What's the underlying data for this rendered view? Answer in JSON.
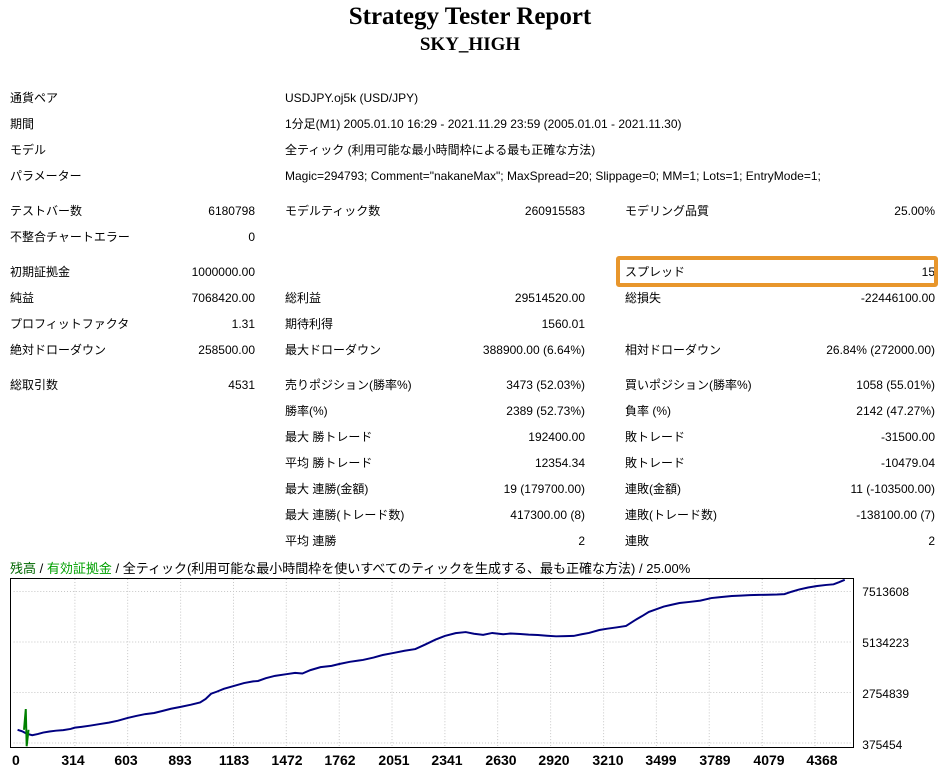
{
  "header": {
    "title": "Strategy Tester Report",
    "subtitle": "SKY_HIGH"
  },
  "table": {
    "rows": [
      {
        "c": [
          "通貨ペア",
          "USDJPY.oj5k (USD/JPY)"
        ],
        "wide": true
      },
      {
        "c": [
          "期間",
          "1分足(M1) 2005.01.10 16:29 - 2021.11.29 23:59 (2005.01.01 - 2021.11.30)"
        ],
        "wide": true
      },
      {
        "c": [
          "モデル",
          "全ティック (利用可能な最小時間枠による最も正確な方法)"
        ],
        "wide": true
      },
      {
        "c": [
          "パラメーター",
          "Magic=294793; Comment=\"nakaneMax\"; MaxSpread=20; Slippage=0; MM=1; Lots=1; EntryMode=1;"
        ],
        "wide": true
      },
      {
        "c": [
          "テストバー数",
          "6180798",
          "モデルティック数",
          "260915583",
          "モデリング品質",
          "25.00%"
        ],
        "gap": true
      },
      {
        "c": [
          "不整合チャートエラー",
          "0",
          "",
          "",
          "",
          ""
        ]
      },
      {
        "c": [
          "初期証拠金",
          "1000000.00",
          "",
          "",
          "スプレッド",
          "15"
        ],
        "gap": true,
        "highlight": true
      },
      {
        "c": [
          "純益",
          "7068420.00",
          "総利益",
          "29514520.00",
          "総損失",
          "-22446100.00"
        ]
      },
      {
        "c": [
          "プロフィットファクタ",
          "1.31",
          "期待利得",
          "1560.01",
          "",
          ""
        ]
      },
      {
        "c": [
          "絶対ドローダウン",
          "258500.00",
          "最大ドローダウン",
          "388900.00 (6.64%)",
          "相対ドローダウン",
          "26.84% (272000.00)"
        ]
      },
      {
        "c": [
          "総取引数",
          "4531",
          "売りポジション(勝率%)",
          "3473 (52.03%)",
          "買いポジション(勝率%)",
          "1058 (55.01%)"
        ],
        "gap": true
      },
      {
        "c": [
          "",
          "",
          "勝率(%)",
          "2389 (52.73%)",
          "負率 (%)",
          "2142 (47.27%)"
        ]
      },
      {
        "c": [
          "",
          "",
          "最大 勝トレード",
          "192400.00",
          "敗トレード",
          "-31500.00"
        ]
      },
      {
        "c": [
          "",
          "",
          "平均 勝トレード",
          "12354.34",
          "敗トレード",
          "-10479.04"
        ]
      },
      {
        "c": [
          "",
          "",
          "最大 連勝(金額)",
          "19 (179700.00)",
          "連敗(金額)",
          "11 (-103500.00)"
        ]
      },
      {
        "c": [
          "",
          "",
          "最大 連勝(トレード数)",
          "417300.00 (8)",
          "連敗(トレード数)",
          "-138100.00 (7)"
        ]
      },
      {
        "c": [
          "",
          "",
          "平均 連勝",
          "2",
          "連敗",
          "2"
        ]
      }
    ]
  },
  "annotations": {
    "spread_highlight_color": "#E8962C"
  },
  "chart_legend": {
    "balance_label": "残高",
    "separator": " / ",
    "equity_label": "有効証拠金",
    "model_label": "全ティック(利用可能な最小時間枠を使いすべてのティックを生成する、最も正確な方法)",
    "quality_label": "25.00%",
    "balance_color": "#006600",
    "equity_color": "#00A000"
  },
  "chart_data": {
    "type": "line",
    "title": "残高 / 有効証拠金 / 全ティック(利用可能な最小時間枠を使いすべてのティックを生成する、最も正確な方法) / 25.00%",
    "xlabel": "",
    "ylabel": "",
    "grid": true,
    "x_ticks": [
      0,
      314,
      603,
      893,
      1183,
      1472,
      1762,
      2051,
      2341,
      2630,
      2920,
      3210,
      3499,
      3789,
      4079,
      4368
    ],
    "y_ticks": [
      375454,
      2754839,
      5134223,
      7513608
    ],
    "xlim": [
      0,
      4531
    ],
    "ylim": [
      190000,
      8100000
    ],
    "series": [
      {
        "id": "balance-line",
        "name": "残高",
        "color": "#000080",
        "width": 2,
        "points": [
          [
            0,
            1000000
          ],
          [
            25,
            930000
          ],
          [
            50,
            820000
          ],
          [
            80,
            741500
          ],
          [
            110,
            800000
          ],
          [
            140,
            870000
          ],
          [
            175,
            920000
          ],
          [
            210,
            960000
          ],
          [
            250,
            985000
          ],
          [
            290,
            1040000
          ],
          [
            314,
            1100000
          ],
          [
            350,
            1140000
          ],
          [
            400,
            1200000
          ],
          [
            450,
            1270000
          ],
          [
            500,
            1340000
          ],
          [
            550,
            1430000
          ],
          [
            603,
            1560000
          ],
          [
            650,
            1650000
          ],
          [
            700,
            1740000
          ],
          [
            748,
            1790000
          ],
          [
            790,
            1880000
          ],
          [
            840,
            1990000
          ],
          [
            893,
            2080000
          ],
          [
            950,
            2180000
          ],
          [
            1000,
            2290000
          ],
          [
            1030,
            2450000
          ],
          [
            1060,
            2700000
          ],
          [
            1090,
            2790000
          ],
          [
            1130,
            2930000
          ],
          [
            1183,
            3060000
          ],
          [
            1240,
            3200000
          ],
          [
            1290,
            3280000
          ],
          [
            1317,
            3300000
          ],
          [
            1360,
            3430000
          ],
          [
            1410,
            3540000
          ],
          [
            1472,
            3620000
          ],
          [
            1520,
            3680000
          ],
          [
            1560,
            3650000
          ],
          [
            1604,
            3810000
          ],
          [
            1660,
            3950000
          ],
          [
            1720,
            4010000
          ],
          [
            1762,
            4100000
          ],
          [
            1820,
            4200000
          ],
          [
            1870,
            4260000
          ],
          [
            1892,
            4290000
          ],
          [
            1950,
            4400000
          ],
          [
            2000,
            4520000
          ],
          [
            2060,
            4620000
          ],
          [
            2120,
            4720000
          ],
          [
            2179,
            4800000
          ],
          [
            2230,
            5000000
          ],
          [
            2290,
            5250000
          ],
          [
            2341,
            5420000
          ],
          [
            2400,
            5550000
          ],
          [
            2455,
            5600000
          ],
          [
            2500,
            5520000
          ],
          [
            2550,
            5470000
          ],
          [
            2600,
            5560000
          ],
          [
            2660,
            5500000
          ],
          [
            2700,
            5530000
          ],
          [
            2753,
            5510000
          ],
          [
            2800,
            5480000
          ],
          [
            2850,
            5460000
          ],
          [
            2900,
            5430000
          ],
          [
            2950,
            5400000
          ],
          [
            3000,
            5410000
          ],
          [
            3046,
            5420000
          ],
          [
            3090,
            5500000
          ],
          [
            3130,
            5560000
          ],
          [
            3187,
            5700000
          ],
          [
            3230,
            5760000
          ],
          [
            3280,
            5820000
          ],
          [
            3333,
            5890000
          ],
          [
            3380,
            6150000
          ],
          [
            3420,
            6350000
          ],
          [
            3458,
            6550000
          ],
          [
            3500,
            6680000
          ],
          [
            3540,
            6800000
          ],
          [
            3580,
            6880000
          ],
          [
            3626,
            6970000
          ],
          [
            3680,
            7020000
          ],
          [
            3740,
            7080000
          ],
          [
            3800,
            7200000
          ],
          [
            3850,
            7250000
          ],
          [
            3913,
            7300000
          ],
          [
            3960,
            7320000
          ],
          [
            4010,
            7340000
          ],
          [
            4060,
            7350000
          ],
          [
            4110,
            7360000
          ],
          [
            4160,
            7370000
          ],
          [
            4201,
            7390000
          ],
          [
            4240,
            7500000
          ],
          [
            4280,
            7600000
          ],
          [
            4330,
            7700000
          ],
          [
            4380,
            7770000
          ],
          [
            4430,
            7820000
          ],
          [
            4470,
            7850000
          ],
          [
            4500,
            7950000
          ],
          [
            4531,
            8068420
          ]
        ]
      },
      {
        "id": "equity-line",
        "name": "有効証拠金",
        "color": "#008000",
        "width": 2,
        "points": [
          [
            35,
            1000000
          ],
          [
            45,
            1975000
          ],
          [
            50,
            200000
          ],
          [
            60,
            1000000
          ]
        ]
      }
    ]
  }
}
